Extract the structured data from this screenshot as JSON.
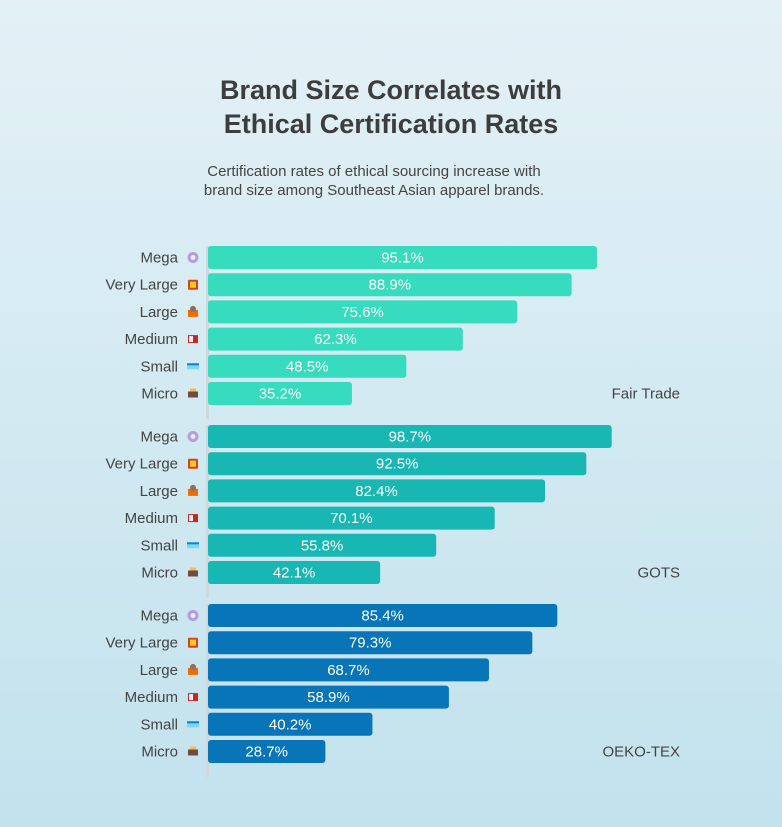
{
  "title_line1": "Brand Size Correlates with",
  "title_line2": "Ethical Certification Rates",
  "subtitle": "Certification rates of ethical sourcing increase with brand size among Southeast Asian apparel brands.",
  "chart_data": {
    "type": "bar",
    "orientation": "horizontal",
    "categories": [
      "Mega",
      "Very Large",
      "Large",
      "Medium",
      "Small",
      "Micro"
    ],
    "category_icons": [
      "mega-brand-icon",
      "very-large-brand-icon",
      "large-brand-icon",
      "medium-brand-icon",
      "small-brand-icon",
      "micro-brand-icon"
    ],
    "series": [
      {
        "name": "Fair Trade",
        "color": "#37dbbd",
        "values": [
          95.1,
          88.9,
          75.6,
          62.3,
          48.5,
          35.2
        ],
        "labels": [
          "95.1%",
          "88.9%",
          "75.6%",
          "62.3%",
          "48.5%",
          "35.2%"
        ]
      },
      {
        "name": "GOTS",
        "color": "#18b7b4",
        "values": [
          98.7,
          92.5,
          82.4,
          70.1,
          55.8,
          42.1
        ],
        "labels": [
          "98.7%",
          "92.5%",
          "82.4%",
          "70.1%",
          "55.8%",
          "42.1%"
        ]
      },
      {
        "name": "OEKO-TEX",
        "color": "#0875b8",
        "values": [
          85.4,
          79.3,
          68.7,
          58.9,
          40.2,
          28.7
        ],
        "labels": [
          "85.4%",
          "79.3%",
          "68.7%",
          "58.9%",
          "40.2%",
          "28.7%"
        ]
      }
    ],
    "value_unit": "%",
    "xlim": [
      0,
      100
    ],
    "grid": false,
    "legend": "none"
  }
}
